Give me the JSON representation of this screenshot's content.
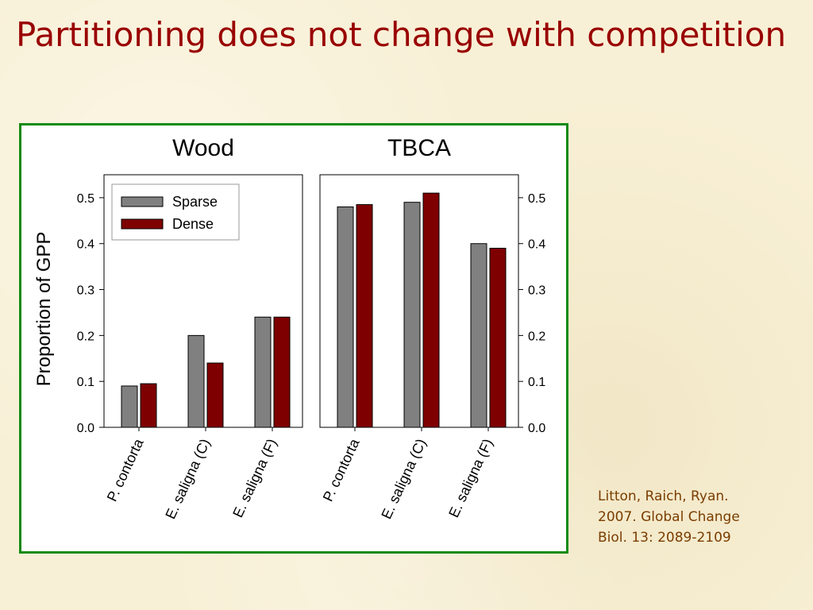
{
  "slide": {
    "title": "Partitioning does not change with competition"
  },
  "citation": {
    "lines": [
      "Litton, Raich, Ryan.",
      "2007. Global Change",
      "Biol. 13: 2089-2109"
    ]
  },
  "colors": {
    "title": "#990000",
    "frame": "#138a13",
    "sparse": "#808080",
    "dense": "#7f0000",
    "citation": "#7a3d00"
  },
  "chart_data": [
    {
      "type": "bar",
      "title": "Wood",
      "ylabel": "Proportion of GPP",
      "categories": [
        "P. contorta",
        "E. saligna (C)",
        "E. saligna (F)"
      ],
      "series": [
        {
          "name": "Sparse",
          "values": [
            0.09,
            0.2,
            0.24
          ]
        },
        {
          "name": "Dense",
          "values": [
            0.095,
            0.14,
            0.24
          ]
        }
      ],
      "ylim": [
        0.0,
        0.55
      ],
      "yticks": [
        "0.0",
        "0.1",
        "0.2",
        "0.3",
        "0.4",
        "0.5"
      ],
      "y_axis_side": "left",
      "legend": {
        "placement": "top-left",
        "entries": [
          "Sparse",
          "Dense"
        ]
      },
      "grid": false
    },
    {
      "type": "bar",
      "title": "TBCA",
      "categories": [
        "P. contorta",
        "E. saligna (C)",
        "E. saligna (F)"
      ],
      "series": [
        {
          "name": "Sparse",
          "values": [
            0.48,
            0.49,
            0.4
          ]
        },
        {
          "name": "Dense",
          "values": [
            0.485,
            0.51,
            0.39
          ]
        }
      ],
      "ylim": [
        0.0,
        0.55
      ],
      "yticks": [
        "0.0",
        "0.1",
        "0.2",
        "0.3",
        "0.4",
        "0.5"
      ],
      "y_axis_side": "right",
      "grid": false
    }
  ]
}
